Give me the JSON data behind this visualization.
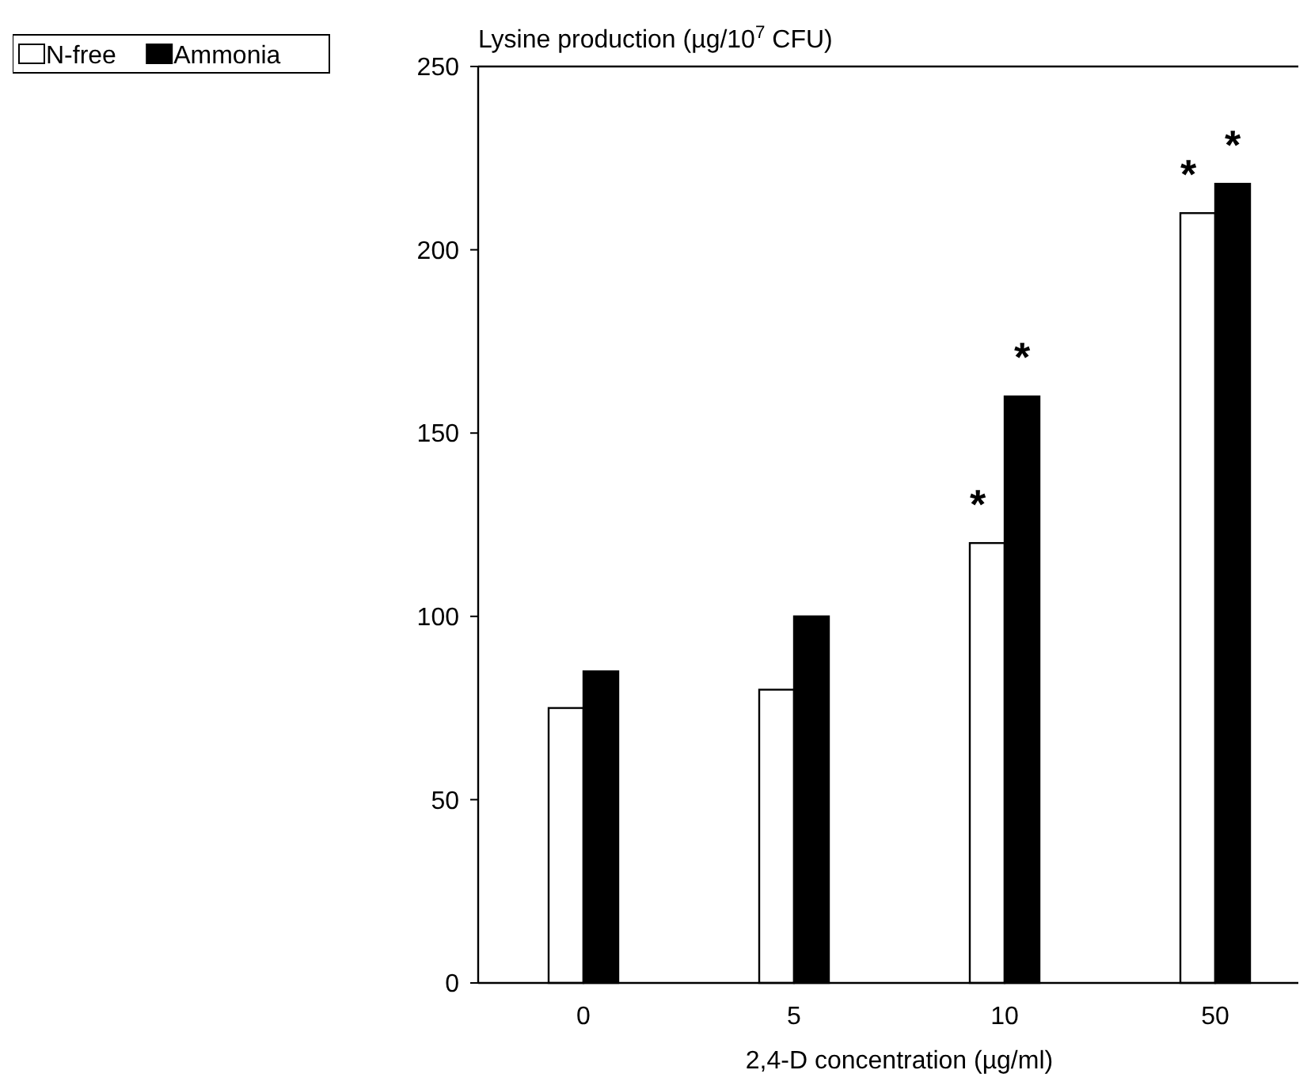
{
  "chart_data": {
    "type": "bar",
    "ylabel": "Lysine production (µg/10$^{7}$ CFU)",
    "xlabel": "2,4-D concentration  (µg/ml)",
    "categories": [
      "0",
      "5",
      "10",
      "50"
    ],
    "series": [
      {
        "name": "N-free",
        "color": "#ffffff",
        "values": [
          75,
          80,
          120,
          210
        ]
      },
      {
        "name": "Ammonia",
        "color": "#000000",
        "values": [
          85,
          100,
          160,
          218
        ]
      }
    ],
    "ylim": [
      0,
      250
    ],
    "yticks": [
      0,
      50,
      100,
      150,
      200,
      250
    ],
    "grid": false,
    "legend": "top left",
    "annotations": [
      {
        "text": "*",
        "x": "10",
        "y": 120
      },
      {
        "text": "*",
        "x": "10",
        "y": 160
      },
      {
        "text": "*",
        "x": "50",
        "y": 210
      },
      {
        "text": "*",
        "x": "50",
        "y": 218
      }
    ]
  }
}
